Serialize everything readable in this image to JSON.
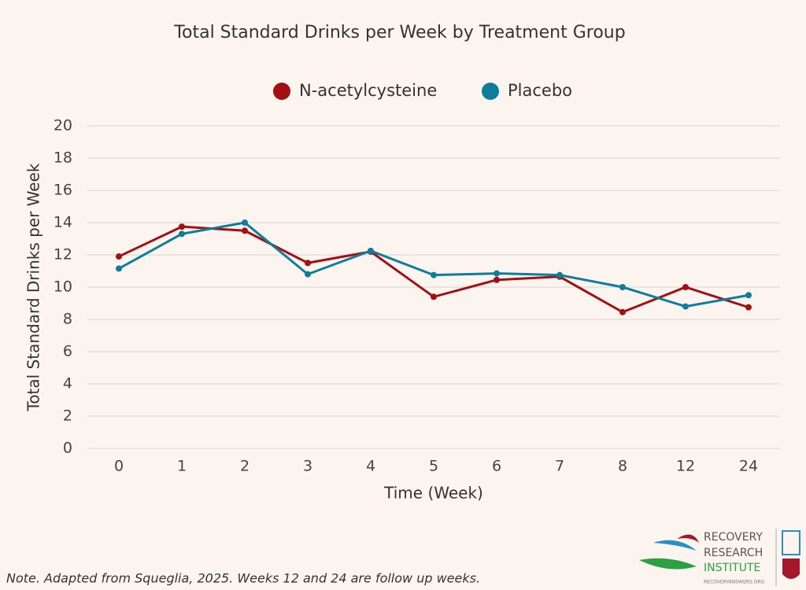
{
  "chart_data": {
    "type": "line",
    "title": "Total Standard Drinks per Week by Treatment Group",
    "x_label": "Time (Week)",
    "y_label": "Total Standard Drinks per Week",
    "categories": [
      "0",
      "1",
      "2",
      "3",
      "4",
      "5",
      "6",
      "7",
      "8",
      "12",
      "24"
    ],
    "series": [
      {
        "name": "N-acetylcysteine",
        "color": "#a30f12",
        "values": [
          11.9,
          13.75,
          13.5,
          11.5,
          12.2,
          9.4,
          10.45,
          10.65,
          8.45,
          10.0,
          8.75
        ]
      },
      {
        "name": "Placebo",
        "color": "#107c9c",
        "values": [
          11.15,
          13.3,
          14.0,
          10.8,
          12.25,
          10.75,
          10.85,
          10.75,
          10.0,
          8.8,
          9.5
        ]
      }
    ],
    "ylim": [
      0,
      20
    ],
    "yticks": [
      0,
      2,
      4,
      6,
      8,
      10,
      12,
      14,
      16,
      18,
      20
    ],
    "grid": true,
    "legend": "top"
  },
  "note": "Note. Adapted from Squeglia, 2025. Weeks 12 and 24 are follow up weeks.",
  "logo": {
    "lines": [
      "RECOVERY",
      "RESEARCH",
      "INSTITUTE"
    ],
    "url": "RECOVERYANSWERS.ORG"
  }
}
